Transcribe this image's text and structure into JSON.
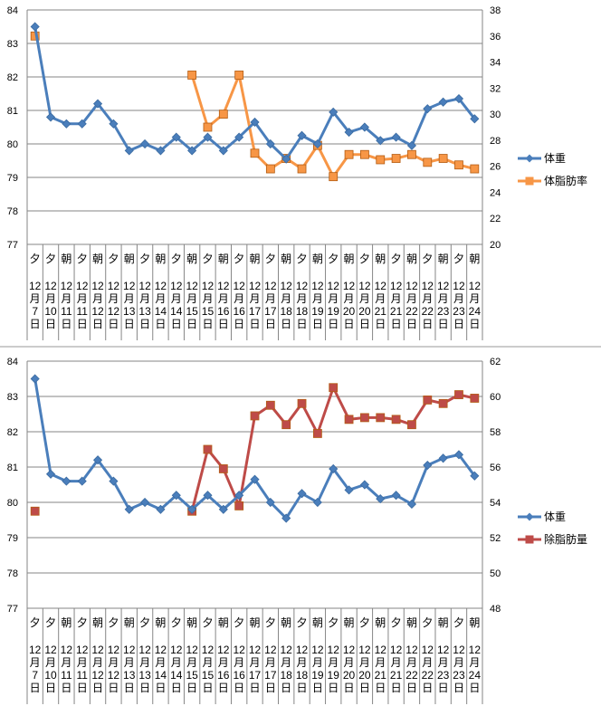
{
  "chart_data": [
    {
      "type": "line",
      "title": "",
      "categories": [
        {
          "period": "夕",
          "month": "12",
          "day": "7"
        },
        {
          "period": "夕",
          "month": "12",
          "day": "10"
        },
        {
          "period": "朝",
          "month": "12",
          "day": "11"
        },
        {
          "period": "夕",
          "month": "12",
          "day": "11"
        },
        {
          "period": "朝",
          "month": "12",
          "day": "12"
        },
        {
          "period": "夕",
          "month": "12",
          "day": "12"
        },
        {
          "period": "朝",
          "month": "12",
          "day": "13"
        },
        {
          "period": "夕",
          "month": "12",
          "day": "13"
        },
        {
          "period": "朝",
          "month": "12",
          "day": "14"
        },
        {
          "period": "夕",
          "month": "12",
          "day": "14"
        },
        {
          "period": "朝",
          "month": "12",
          "day": "15"
        },
        {
          "period": "夕",
          "month": "12",
          "day": "15"
        },
        {
          "period": "朝",
          "month": "12",
          "day": "16"
        },
        {
          "period": "夕",
          "month": "12",
          "day": "16"
        },
        {
          "period": "朝",
          "month": "12",
          "day": "17"
        },
        {
          "period": "夕",
          "month": "12",
          "day": "17"
        },
        {
          "period": "朝",
          "month": "12",
          "day": "18"
        },
        {
          "period": "夕",
          "month": "12",
          "day": "18"
        },
        {
          "period": "朝",
          "month": "12",
          "day": "19"
        },
        {
          "period": "夕",
          "month": "12",
          "day": "19"
        },
        {
          "period": "朝",
          "month": "12",
          "day": "20"
        },
        {
          "period": "夕",
          "month": "12",
          "day": "20"
        },
        {
          "period": "朝",
          "month": "12",
          "day": "21"
        },
        {
          "period": "夕",
          "month": "12",
          "day": "21"
        },
        {
          "period": "朝",
          "month": "12",
          "day": "22"
        },
        {
          "period": "夕",
          "month": "12",
          "day": "22"
        },
        {
          "period": "朝",
          "month": "12",
          "day": "23"
        },
        {
          "period": "夕",
          "month": "12",
          "day": "23"
        },
        {
          "period": "朝",
          "month": "12",
          "day": "24"
        }
      ],
      "month_suffix": "月",
      "day_suffix": "日",
      "y_left": {
        "ticks": [
          "77",
          "78",
          "79",
          "80",
          "81",
          "82",
          "83",
          "84"
        ],
        "min": 77,
        "max": 84
      },
      "y_right": {
        "ticks": [
          "20",
          "22",
          "24",
          "26",
          "28",
          "30",
          "32",
          "34",
          "36",
          "38"
        ],
        "min": 20,
        "max": 38
      },
      "grid": true,
      "legend_position": "right",
      "series": [
        {
          "name": "体重",
          "axis": "left",
          "color": "#4a7ebb",
          "marker": "diamond",
          "values": [
            83.5,
            80.8,
            80.6,
            80.6,
            81.2,
            80.6,
            79.8,
            80.0,
            79.8,
            80.2,
            79.8,
            80.2,
            79.8,
            80.2,
            80.65,
            80.0,
            79.55,
            80.25,
            80.0,
            80.95,
            80.35,
            80.5,
            80.1,
            80.2,
            79.95,
            81.05,
            81.25,
            81.35,
            80.75
          ]
        },
        {
          "name": "体脂肪率",
          "axis": "right",
          "color": "#f79646",
          "marker": "square",
          "values": [
            36.0,
            null,
            null,
            null,
            null,
            null,
            null,
            null,
            null,
            null,
            33.0,
            29.0,
            30.0,
            33.0,
            27.0,
            25.8,
            26.6,
            25.8,
            27.6,
            25.2,
            26.9,
            26.9,
            26.5,
            26.6,
            26.9,
            26.3,
            26.6,
            26.1,
            25.8
          ]
        }
      ]
    },
    {
      "type": "line",
      "title": "",
      "y_left": {
        "ticks": [
          "77",
          "78",
          "79",
          "80",
          "81",
          "82",
          "83",
          "84"
        ],
        "min": 77,
        "max": 84
      },
      "y_right": {
        "ticks": [
          "48",
          "50",
          "52",
          "54",
          "56",
          "58",
          "60",
          "62"
        ],
        "min": 48,
        "max": 62
      },
      "grid": true,
      "legend_position": "right",
      "series": [
        {
          "name": "体重",
          "axis": "left",
          "color": "#4a7ebb",
          "marker": "diamond",
          "values": [
            83.5,
            80.8,
            80.6,
            80.6,
            81.2,
            80.6,
            79.8,
            80.0,
            79.8,
            80.2,
            79.8,
            80.2,
            79.8,
            80.2,
            80.65,
            80.0,
            79.55,
            80.25,
            80.0,
            80.95,
            80.35,
            80.5,
            80.1,
            80.2,
            79.95,
            81.05,
            81.25,
            81.35,
            80.75
          ]
        },
        {
          "name": "除脂肪量",
          "axis": "right",
          "color": "#be4b48",
          "marker": "square",
          "values": [
            53.5,
            null,
            null,
            null,
            null,
            null,
            null,
            null,
            null,
            null,
            53.5,
            57.0,
            55.9,
            53.8,
            58.9,
            59.5,
            58.4,
            59.6,
            57.9,
            60.5,
            58.7,
            58.8,
            58.8,
            58.7,
            58.4,
            59.8,
            59.6,
            60.1,
            59.9
          ]
        }
      ]
    }
  ]
}
